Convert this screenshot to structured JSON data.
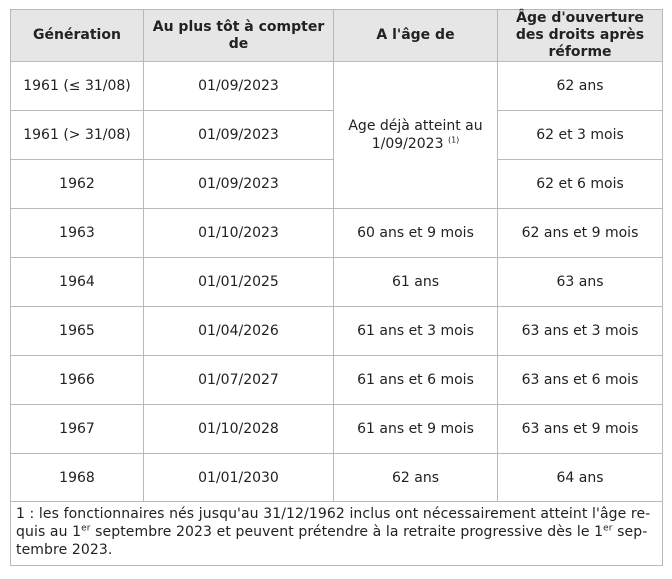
{
  "table": {
    "headers": [
      "Génération",
      "Au plus tôt à compter de",
      "A l'âge de",
      "Âge d'ouverture des droits après réforme"
    ],
    "rows": [
      {
        "generation": "1961 (≤ 31/08)",
        "from": "01/09/2023",
        "age": "",
        "new_age": "62 ans"
      },
      {
        "generation": "1961 (> 31/08)",
        "from": "01/09/2023",
        "age": "",
        "new_age": "62 et 3 mois"
      },
      {
        "generation": "1962",
        "from": "01/09/2023",
        "age": "",
        "new_age": "62 et 6 mois"
      },
      {
        "generation": "1963",
        "from": "01/10/2023",
        "age": "60 ans et 9 mois",
        "new_age": "62 ans et 9 mois"
      },
      {
        "generation": "1964",
        "from": "01/01/2025",
        "age": "61 ans",
        "new_age": "63 ans"
      },
      {
        "generation": "1965",
        "from": "01/04/2026",
        "age": "61 ans et 3 mois",
        "new_age": "63 ans et 3 mois"
      },
      {
        "generation": "1966",
        "from": "01/07/2027",
        "age": "61 ans et 6 mois",
        "new_age": "63 ans et 6 mois"
      },
      {
        "generation": "1967",
        "from": "01/10/2028",
        "age": "61 ans et 9 mois",
        "new_age": "63 ans et 9 mois"
      },
      {
        "generation": "1968",
        "from": "01/01/2030",
        "age": "62 ans",
        "new_age": "64 ans"
      }
    ],
    "merged_age_text": "Age déjà atteint au 1/09/2023",
    "merged_age_footnote_ref": "(1)"
  },
  "footnote": {
    "part1": "1 : les fonctionnaires nés jusqu'au 31/12/1962 inclus ont nécessairement atteint l'âge re-quis au 1",
    "sup1": "er",
    "part2": " septembre 2023 et peuvent prétendre à la retraite progressive dès le 1",
    "sup2": "er",
    "part3": " sep-tembre 2023."
  },
  "colors": {
    "header_bg": "#e6e6e6",
    "border": "#b9b9b9",
    "text": "#222222"
  }
}
